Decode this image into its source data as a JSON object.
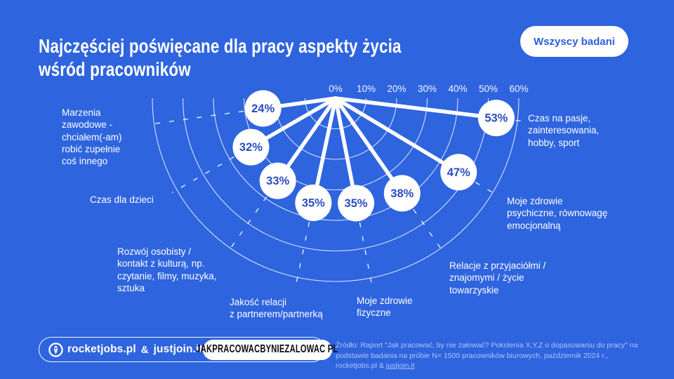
{
  "colors": {
    "background": "#2E64DE",
    "chart_white": "#FFFFFF",
    "point_text": "#2A4DC0",
    "button_text": "#2E5ED9",
    "badge_text": "#0B0B14"
  },
  "header": {
    "title": "Najczęściej poświęcane dla pracy aspekty życia\nwśród pracowników",
    "filter_button": "Wszyscy badani"
  },
  "chart_data": {
    "type": "radial-fan",
    "title": "Najczęściej poświęcane dla pracy aspekty życia wśród pracowników",
    "axis_ticks": [
      "0%",
      "10%",
      "20%",
      "30%",
      "40%",
      "50%",
      "60%"
    ],
    "axis_min": 0,
    "axis_max": 60,
    "grid": "concentric-dashed-arcs-every-10pct",
    "unit": "%",
    "series": [
      {
        "label": "Czas na pasje,\nzainteresowania,\nhobby, sport",
        "value": 53,
        "angle_deg": 7
      },
      {
        "label": "Moje zdrowie\npsychiczne, równowagę\nemocjonalną",
        "value": 47,
        "angle_deg": 31
      },
      {
        "label": "Relacje z przyjaciółmi /\nznajomymi / życie\ntowarzyskie",
        "value": 38,
        "angle_deg": 55
      },
      {
        "label": "Moje zdrowie\nfizyczne",
        "value": 35,
        "angle_deg": 79
      },
      {
        "label": "Jakość relacji\nz partnerem/partnerką",
        "value": 35,
        "angle_deg": 102
      },
      {
        "label": "Rozwój osobisty /\nkontakt z kulturą, np.\nczytanie, filmy, muzyka,\nsztuka",
        "value": 33,
        "angle_deg": 125
      },
      {
        "label": "Czas dla dzieci",
        "value": 32,
        "angle_deg": 150
      },
      {
        "label": "Marzenia\nzawodowe -\nchciałem(-am)\nrobić zupełnie\ncoś innego",
        "value": 24,
        "angle_deg": 172
      }
    ]
  },
  "footer": {
    "brand_left": "rocketjobs.pl",
    "brand_separator": "&",
    "brand_right": "justjoin.it",
    "domain_badge": "JAKPRACOWACBYNIEZALOWAC PL",
    "source_line1": "Źródło: Raport \"Jak pracować, by nie żałować? Pokolenia X,Y,Z o dopasowaniu do pracy\" na podstawie",
    "source_line2": "badania na próbie N= 1500 pracowników biurowych, październik 2024 r., rocketjobs.pl & ",
    "source_link": "justjoin.it"
  }
}
